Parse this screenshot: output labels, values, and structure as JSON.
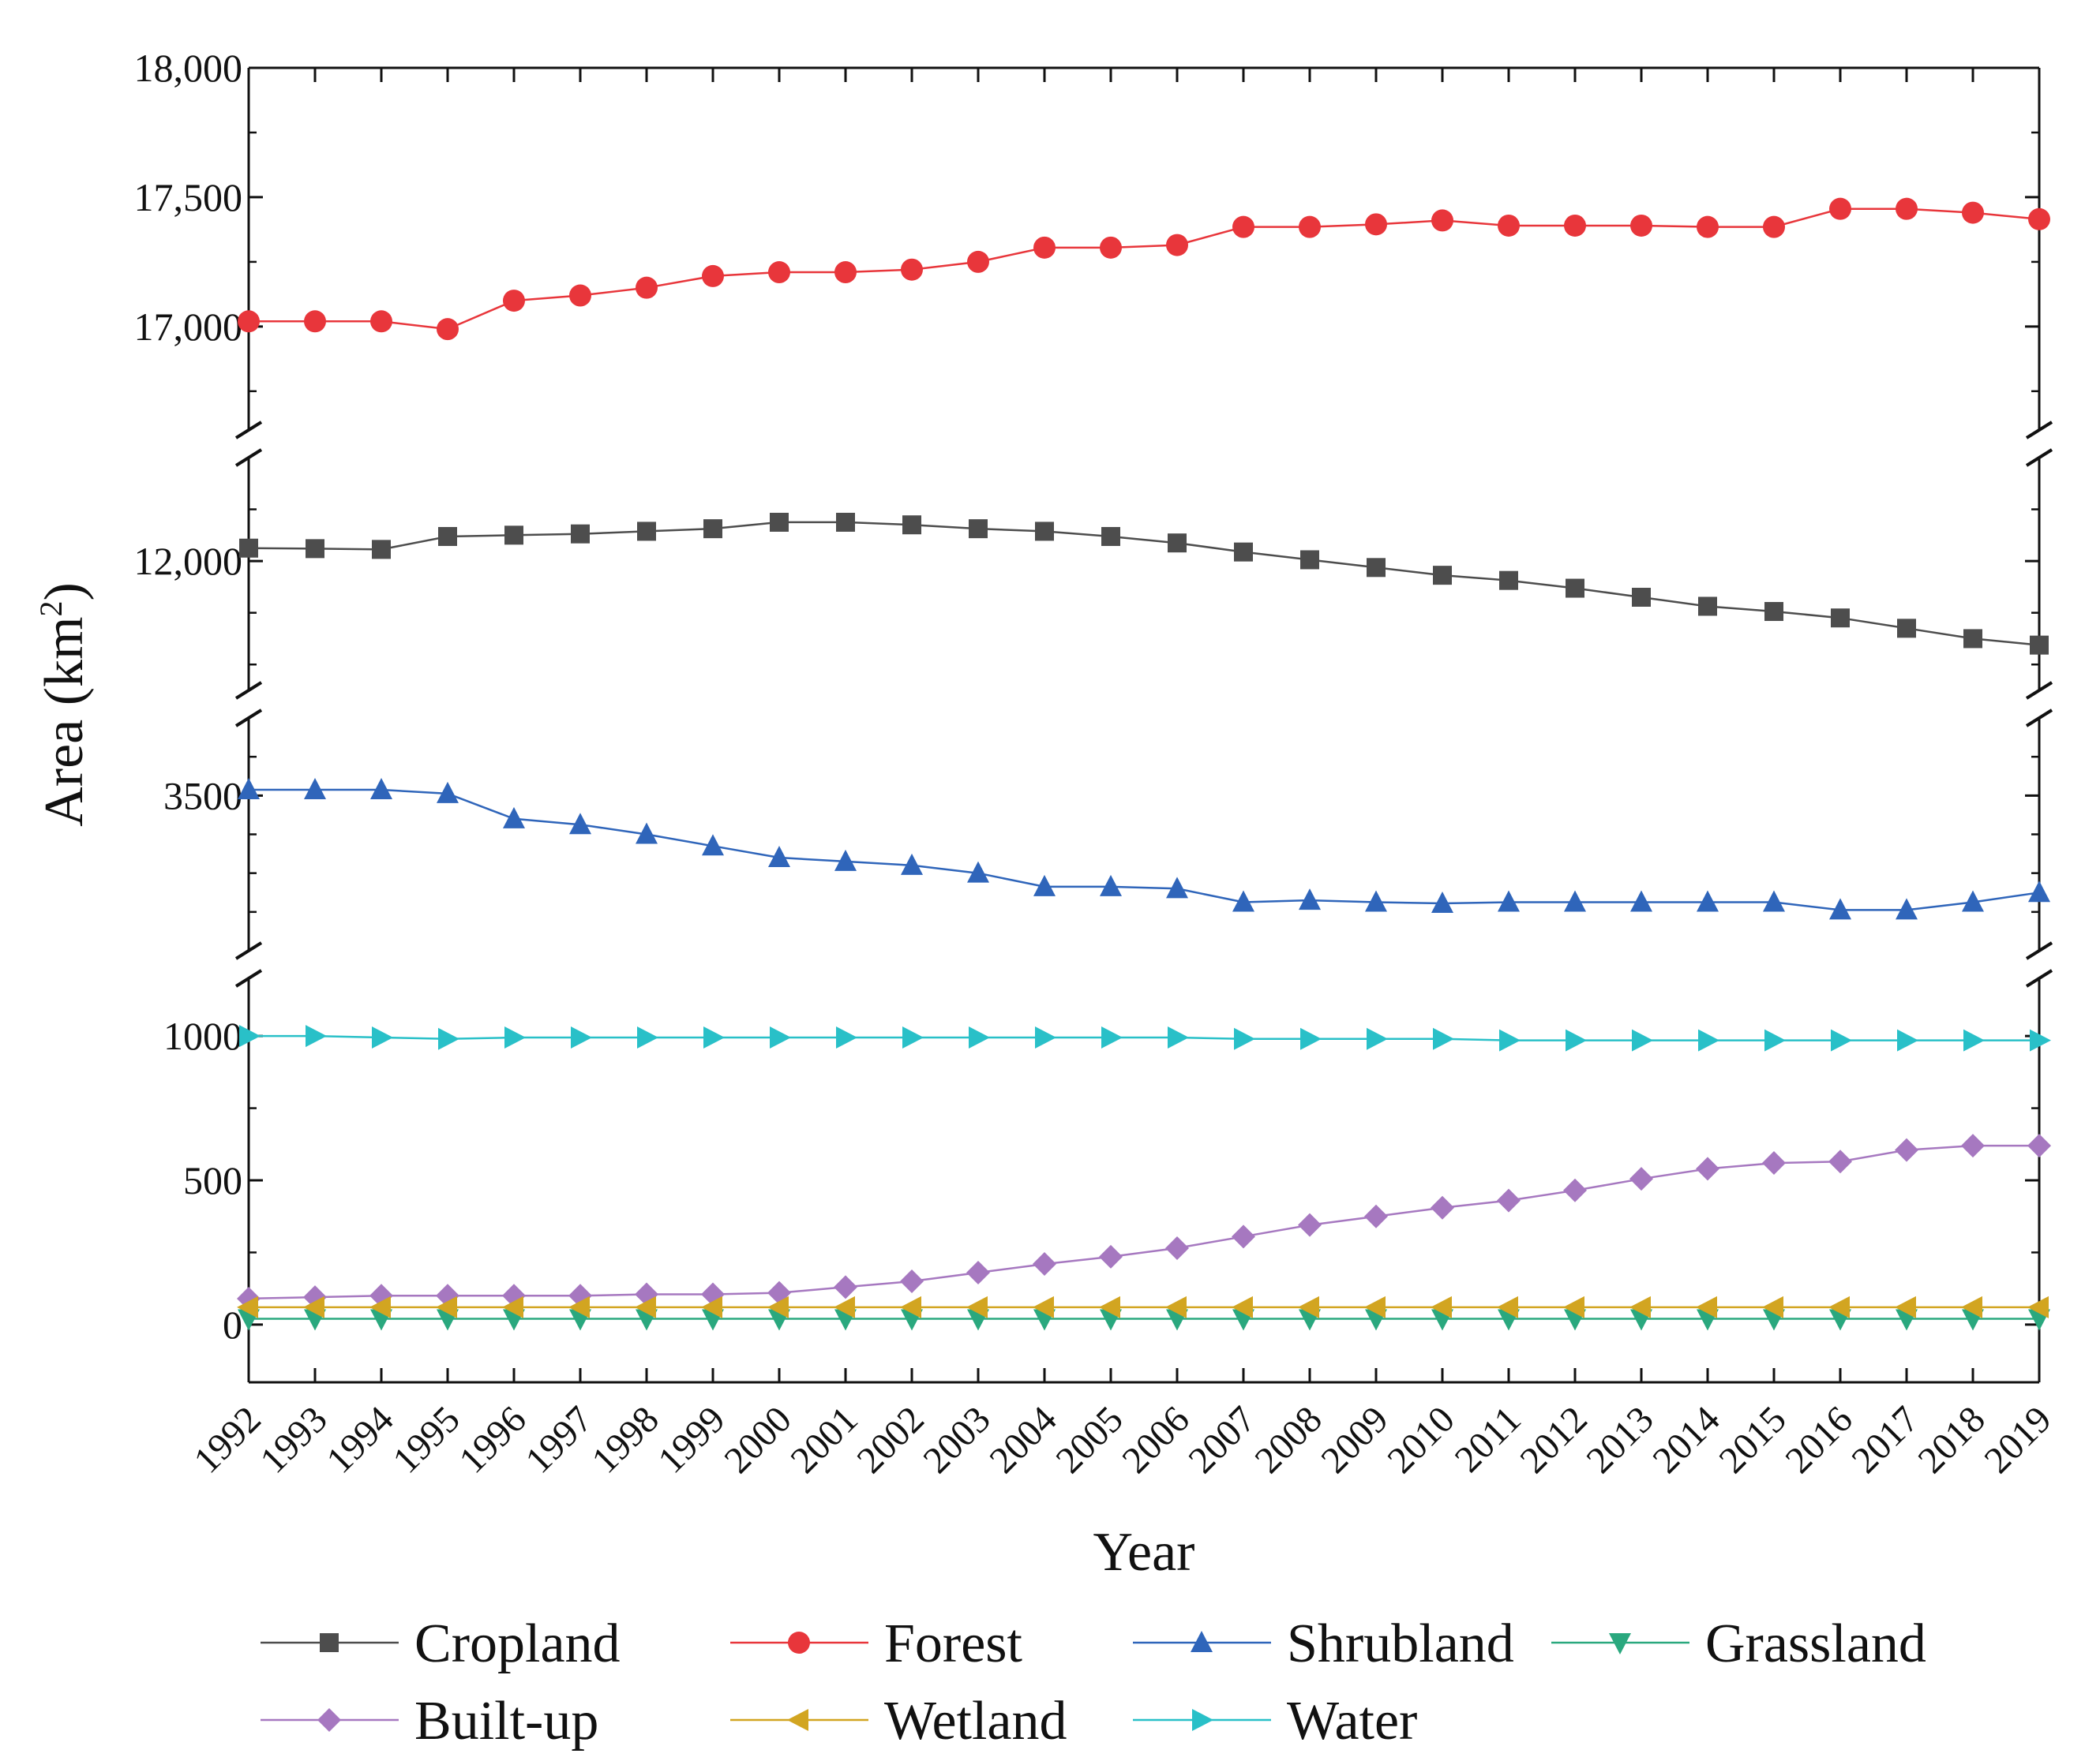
{
  "chart_data": {
    "type": "line",
    "title": "",
    "xlabel": "Year",
    "ylabel": "Area (km²)",
    "ylabel_main": "Area (km",
    "ylabel_sup": "2",
    "ylabel_close": ")",
    "axis_breaks": true,
    "legend_position": "bottom",
    "categories": [
      "1992",
      "1993",
      "1994",
      "1995",
      "1996",
      "1997",
      "1998",
      "1999",
      "2000",
      "2001",
      "2002",
      "2003",
      "2004",
      "2005",
      "2006",
      "2007",
      "2008",
      "2009",
      "2010",
      "2011",
      "2012",
      "2013",
      "2014",
      "2015",
      "2016",
      "2017",
      "2018",
      "2019"
    ],
    "panels": [
      {
        "name": "forest-panel",
        "ylim": [
          16600,
          18000
        ],
        "ticks": [
          17000,
          17500,
          18000
        ],
        "tick_labels": [
          "17,000",
          "17,500",
          "18,000"
        ]
      },
      {
        "name": "cropland-panel",
        "ylim": [
          11500,
          12400
        ],
        "ticks": [
          12000
        ],
        "tick_labels": [
          "12,000"
        ]
      },
      {
        "name": "shrubland-panel",
        "ylim": [
          3100,
          3700
        ],
        "ticks": [
          3500
        ],
        "tick_labels": [
          "3500"
        ]
      },
      {
        "name": "lower-panel",
        "ylim": [
          -200,
          1200
        ],
        "ticks": [
          0,
          500,
          1000
        ],
        "tick_labels": [
          "0",
          "500",
          "1000"
        ]
      }
    ],
    "series": [
      {
        "name": "Cropland",
        "color": "#4d4d4d",
        "marker": "square",
        "panel": 1,
        "values": [
          12050,
          12048,
          12045,
          12095,
          12100,
          12105,
          12115,
          12125,
          12150,
          12150,
          12140,
          12125,
          12115,
          12095,
          12070,
          12035,
          12005,
          11975,
          11945,
          11925,
          11895,
          11860,
          11825,
          11805,
          11780,
          11740,
          11700,
          11675
        ]
      },
      {
        "name": "Forest",
        "color": "#e8363b",
        "marker": "circle",
        "panel": 0,
        "values": [
          17020,
          17020,
          17020,
          16990,
          17100,
          17120,
          17150,
          17195,
          17210,
          17210,
          17220,
          17250,
          17305,
          17305,
          17315,
          17385,
          17385,
          17395,
          17410,
          17390,
          17390,
          17390,
          17385,
          17385,
          17455,
          17455,
          17440,
          17415
        ]
      },
      {
        "name": "Shrubland",
        "color": "#2f65ba",
        "marker": "triangle-up",
        "panel": 2,
        "values": [
          3515,
          3515,
          3515,
          3505,
          3440,
          3425,
          3400,
          3370,
          3340,
          3330,
          3320,
          3300,
          3265,
          3265,
          3260,
          3225,
          3230,
          3225,
          3222,
          3225,
          3225,
          3225,
          3225,
          3225,
          3205,
          3205,
          3225,
          3250
        ]
      },
      {
        "name": "Grassland",
        "color": "#2aa87e",
        "marker": "triangle-down",
        "panel": 3,
        "values": [
          20,
          20,
          20,
          20,
          20,
          20,
          20,
          20,
          20,
          20,
          20,
          20,
          20,
          20,
          20,
          20,
          20,
          20,
          20,
          20,
          20,
          20,
          20,
          20,
          20,
          20,
          20,
          20
        ]
      },
      {
        "name": "Built-up",
        "color": "#a678c0",
        "marker": "diamond",
        "panel": 3,
        "values": [
          90,
          95,
          100,
          100,
          100,
          100,
          105,
          105,
          110,
          130,
          150,
          180,
          210,
          235,
          265,
          305,
          345,
          375,
          405,
          430,
          465,
          505,
          540,
          560,
          565,
          605,
          620,
          620
        ]
      },
      {
        "name": "Wetland",
        "color": "#d2a521",
        "marker": "triangle-left",
        "panel": 3,
        "values": [
          60,
          60,
          60,
          60,
          60,
          60,
          60,
          60,
          60,
          60,
          60,
          60,
          60,
          60,
          60,
          60,
          60,
          60,
          60,
          60,
          60,
          60,
          60,
          60,
          60,
          60,
          60,
          60
        ]
      },
      {
        "name": "Water",
        "color": "#29c0c8",
        "marker": "triangle-right",
        "panel": 3,
        "values": [
          1000,
          1000,
          995,
          990,
          995,
          995,
          995,
          995,
          995,
          995,
          995,
          995,
          995,
          995,
          995,
          990,
          990,
          990,
          990,
          985,
          985,
          985,
          985,
          985,
          985,
          985,
          985,
          985
        ]
      }
    ]
  }
}
